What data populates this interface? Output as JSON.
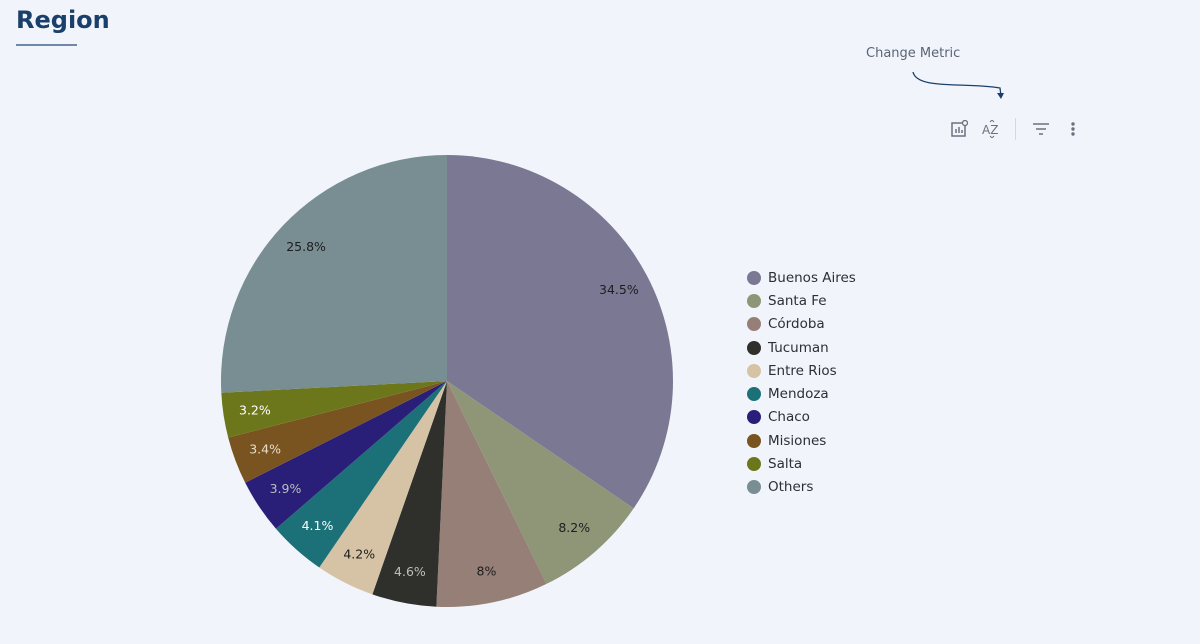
{
  "header": {
    "title": "Region"
  },
  "toolbar": {
    "hint": "Change Metric",
    "icons": [
      "chart-settings-icon",
      "sort-az-icon",
      "filter-icon",
      "more-vert-icon"
    ]
  },
  "chart_data": {
    "type": "pie",
    "start": "top",
    "direction": "clockwise",
    "legend_position": "right",
    "categories": [
      "Buenos Aires",
      "Santa Fe",
      "Córdoba",
      "Tucuman",
      "Entre Rios",
      "Mendoza",
      "Chaco",
      "Misiones",
      "Salta",
      "Others"
    ],
    "values": [
      34.5,
      8.2,
      8,
      4.6,
      4.2,
      4.1,
      3.9,
      3.4,
      3.2,
      25.8
    ],
    "data_labels": [
      "34.5%",
      "8.2%",
      "8%",
      "4.6%",
      "4.2%",
      "4.1%",
      "3.9%",
      "3.4%",
      "3.2%",
      "25.8%"
    ],
    "colors": [
      "#7b7894",
      "#8f9677",
      "#967f76",
      "#2f302b",
      "#d6c3a5",
      "#1c7179",
      "#2a1f78",
      "#7a5420",
      "#6c771c",
      "#788e92"
    ],
    "label_colors": [
      "#1e1e1e",
      "#1e1e1e",
      "#1e1e1e",
      "#bdbdbd",
      "#1e1e1e",
      "#ffffff",
      "#bdbdbd",
      "#e6dccb",
      "#ffffff",
      "#1e1e1e"
    ]
  }
}
